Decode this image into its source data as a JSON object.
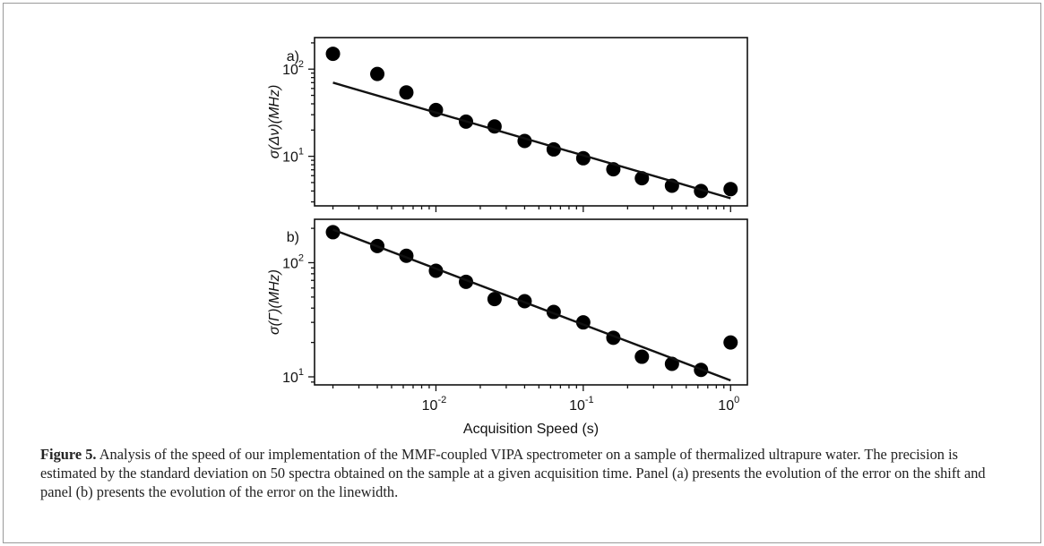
{
  "chart_data": [
    {
      "type": "scatter",
      "panel_label": "a)",
      "ylabel": "σ(Δν)(MHz)",
      "xscale": "log",
      "yscale": "log",
      "xlim": [
        0.0015,
        1.3
      ],
      "ylim": [
        2.7,
        230
      ],
      "xticks": [
        0.01,
        0.1,
        1
      ],
      "yticks": [
        10,
        100
      ],
      "series": [
        {
          "kind": "points",
          "x": [
            0.002,
            0.004,
            0.0063,
            0.01,
            0.016,
            0.025,
            0.04,
            0.063,
            0.1,
            0.16,
            0.25,
            0.4,
            0.63,
            1.0
          ],
          "y": [
            150,
            88,
            54,
            34,
            25,
            22,
            15,
            12,
            9.5,
            7.1,
            5.6,
            4.6,
            4.0,
            4.2
          ]
        },
        {
          "kind": "fit-line",
          "x": [
            0.002,
            1.0
          ],
          "y": [
            70,
            3.3
          ]
        }
      ]
    },
    {
      "type": "scatter",
      "panel_label": "b)",
      "ylabel": "σ(Γ)(MHz)",
      "xlabel": "Acquisition Speed (s)",
      "xscale": "log",
      "yscale": "log",
      "xlim": [
        0.0015,
        1.3
      ],
      "ylim": [
        8.5,
        240
      ],
      "xticks": [
        0.01,
        0.1,
        1
      ],
      "yticks": [
        10,
        100
      ],
      "series": [
        {
          "kind": "points",
          "x": [
            0.002,
            0.004,
            0.0063,
            0.01,
            0.016,
            0.025,
            0.04,
            0.063,
            0.1,
            0.16,
            0.25,
            0.4,
            0.63,
            1.0
          ],
          "y": [
            185,
            140,
            115,
            85,
            68,
            48,
            46,
            37,
            30,
            22,
            15,
            13,
            11.5,
            20
          ]
        },
        {
          "kind": "fit-line",
          "x": [
            0.002,
            1.0
          ],
          "y": [
            195,
            9.3
          ]
        }
      ]
    }
  ],
  "caption": {
    "label": "Figure 5.",
    "text": " Analysis of the speed of our implementation of the MMF-coupled VIPA spectrometer on a sample of thermalized ultrapure water. The precision is estimated by the standard deviation on 50 spectra obtained on the sample at a given acquisition time. Panel (a) presents the evolution of the error on the shift and panel (b) presents the evolution of the error on the linewidth."
  }
}
